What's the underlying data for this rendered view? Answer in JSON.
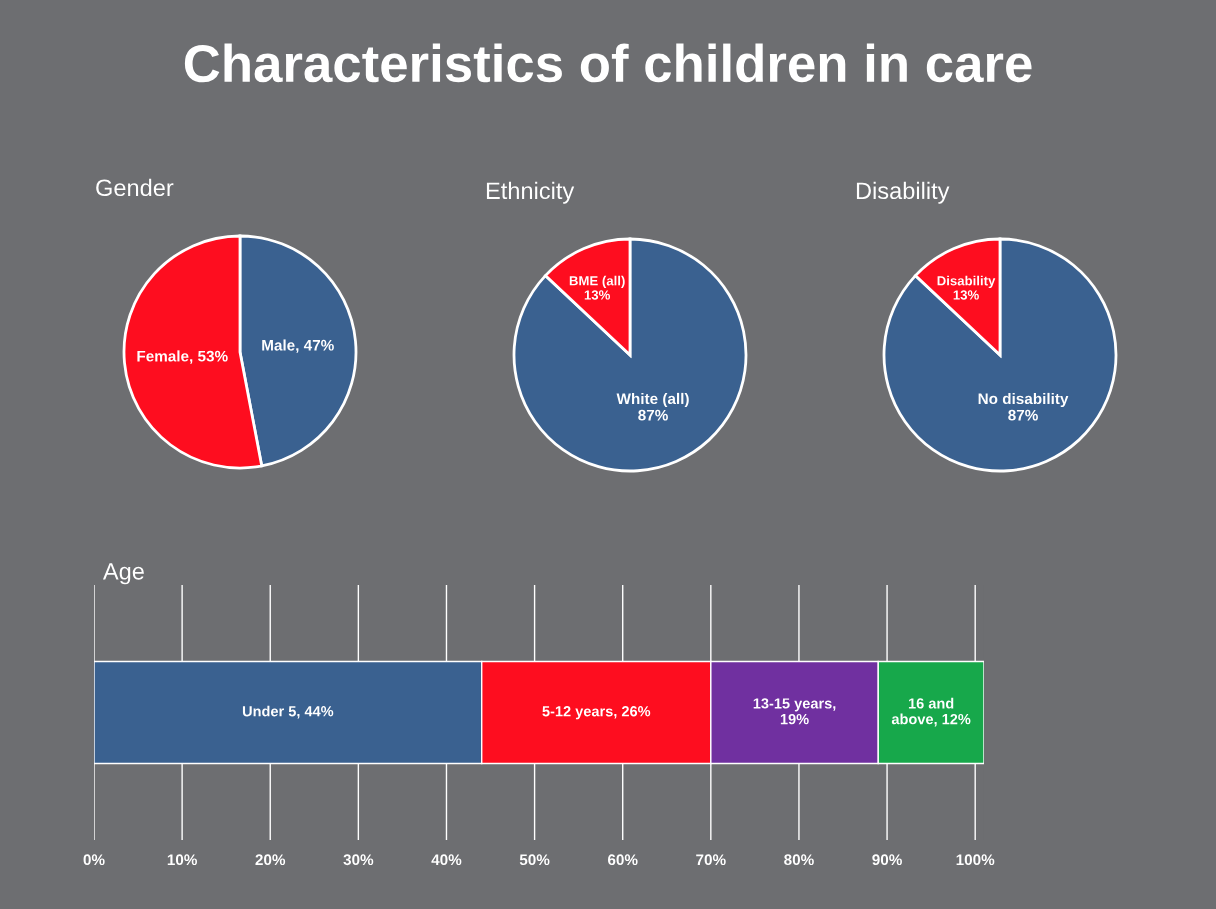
{
  "chart_data": [
    {
      "type": "other",
      "title": "Characteristics of children in care"
    },
    {
      "type": "pie",
      "title": "Gender",
      "categories": [
        "Male",
        "Female"
      ],
      "values": [
        47,
        53
      ],
      "colors": [
        "#3a6190",
        "#fe0d1f"
      ],
      "value_labels": [
        "47%",
        "53%"
      ]
    },
    {
      "type": "pie",
      "title": "Ethnicity",
      "categories": [
        "White (all)",
        "BME (all)"
      ],
      "values": [
        87,
        13
      ],
      "colors": [
        "#3a6190",
        "#fe0d1f"
      ],
      "value_labels": [
        "87%",
        "13%"
      ]
    },
    {
      "type": "pie",
      "title": "Disability",
      "categories": [
        "No disability",
        "Disability"
      ],
      "values": [
        87,
        13
      ],
      "colors": [
        "#3a6190",
        "#fe0d1f"
      ],
      "value_labels": [
        "87%",
        "13%"
      ]
    },
    {
      "type": "bar",
      "title": "Age",
      "orientation": "horizontal",
      "stacked": true,
      "categories": [
        null
      ],
      "grid": "x",
      "legend": false,
      "xlim": [
        0,
        101
      ],
      "xticks": [
        {
          "value": 0,
          "label": "0%"
        },
        {
          "value": 10,
          "label": "10%"
        },
        {
          "value": 20,
          "label": "20%"
        },
        {
          "value": 30,
          "label": "30%"
        },
        {
          "value": 40,
          "label": "40%"
        },
        {
          "value": 50,
          "label": "50%"
        },
        {
          "value": 60,
          "label": "60%"
        },
        {
          "value": 70,
          "label": "70%"
        },
        {
          "value": 80,
          "label": "80%"
        },
        {
          "value": 90,
          "label": "90%"
        },
        {
          "value": 100,
          "label": "100%"
        }
      ],
      "series": [
        {
          "color": "#3a6190",
          "values": [
            44
          ],
          "value_labels": [
            "Under 5, 44%"
          ]
        },
        {
          "color": "#fe0d1f",
          "values": [
            26
          ],
          "value_labels": [
            "5-12 years, 26%"
          ]
        },
        {
          "color": "#7030a0",
          "values": [
            19
          ],
          "value_labels": [
            "13-15 years,\n19%"
          ]
        },
        {
          "color": "#17a84b",
          "values": [
            12
          ],
          "value_labels": [
            "16 and\nabove, 12%"
          ]
        }
      ]
    }
  ]
}
